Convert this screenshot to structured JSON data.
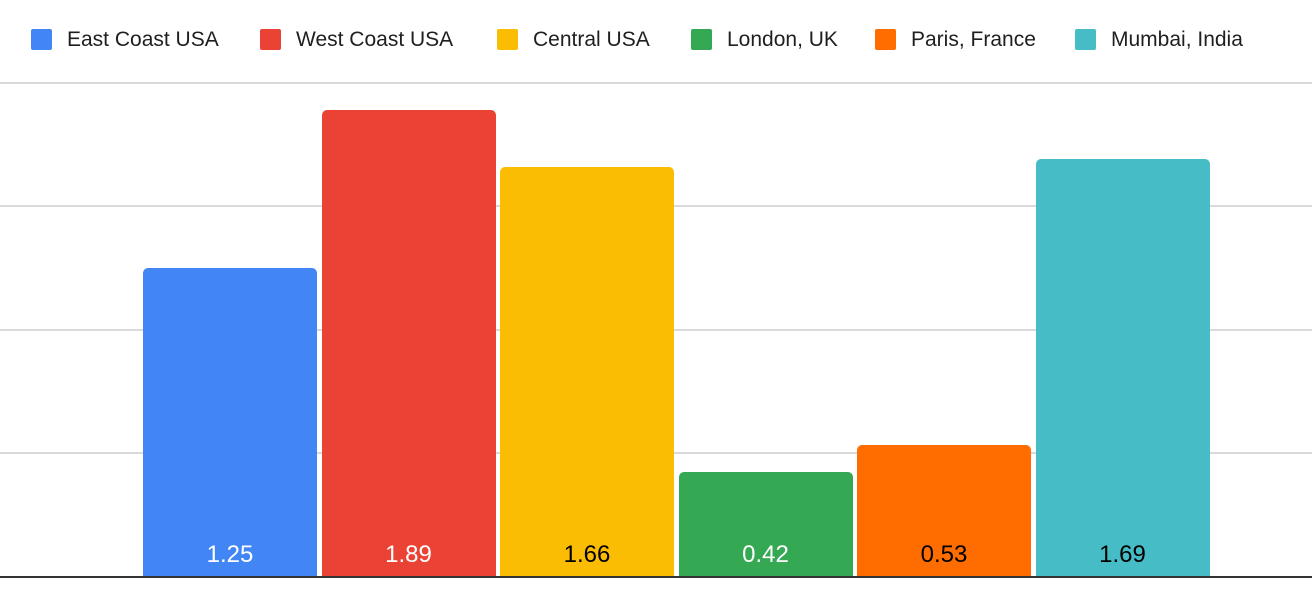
{
  "chart": {
    "legend_items": [
      {
        "label": "East Coast USA"
      },
      {
        "label": "West Coast USA"
      },
      {
        "label": "Central USA"
      },
      {
        "label": "London, UK"
      },
      {
        "label": "Paris, France"
      },
      {
        "label": "Mumbai, India"
      }
    ]
  },
  "chart_data": {
    "type": "bar",
    "title": "",
    "xlabel": "",
    "ylabel": "",
    "categories": [
      ""
    ],
    "series": [
      {
        "name": "East Coast USA",
        "value": 1.25,
        "value_label": "1.25",
        "color": "#4285F4",
        "value_label_color": "#ffffff"
      },
      {
        "name": "West Coast USA",
        "value": 1.89,
        "value_label": "1.89",
        "color": "#EA4335",
        "value_label_color": "#ffffff"
      },
      {
        "name": "Central USA",
        "value": 1.66,
        "value_label": "1.66",
        "color": "#FBBC04",
        "value_label_color": "#000000"
      },
      {
        "name": "London, UK",
        "value": 0.42,
        "value_label": "0.42",
        "color": "#34A853",
        "value_label_color": "#ffffff"
      },
      {
        "name": "Paris, France",
        "value": 0.53,
        "value_label": "0.53",
        "color": "#FF6D01",
        "value_label_color": "#000000"
      },
      {
        "name": "Mumbai, India",
        "value": 1.69,
        "value_label": "1.69",
        "color": "#46BDC6",
        "value_label_color": "#000000"
      }
    ],
    "ylim": [
      0,
      2.0
    ],
    "gridline_interval": 0.5,
    "grid_on": true,
    "legend_position": "top",
    "value_labels_shown": true,
    "axis_tick_labels_shown": false,
    "colors": {
      "background": "#ffffff",
      "gridline": "#d9d9d9",
      "axis_baseline": "#333333",
      "legend_text": "#1f1f1f"
    }
  }
}
